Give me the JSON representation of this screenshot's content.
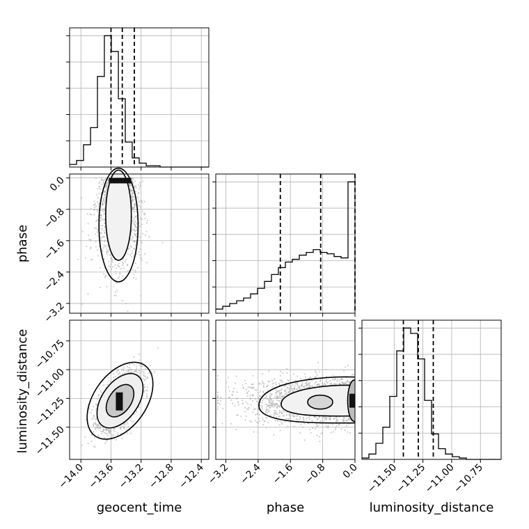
{
  "chart_data": {
    "type": "corner",
    "parameters": [
      "geocent_time",
      "phase",
      "luminosity_distance"
    ],
    "axis_labels": {
      "x": [
        "geocent_time",
        "phase",
        "luminosity_distance"
      ],
      "y_row1": "phase",
      "y_row2": "luminosity_distance"
    },
    "ranges": {
      "geocent_time": [
        -14.15,
        -12.3
      ],
      "phase": [
        -3.45,
        0.0
      ],
      "luminosity_distance": [
        -11.78,
        -10.57
      ]
    },
    "ticks": {
      "geocent_time": [
        -14.0,
        -13.6,
        -13.2,
        -12.8,
        -12.4
      ],
      "phase": [
        -3.2,
        -2.4,
        -1.6,
        -0.8,
        0.0
      ],
      "luminosity_distance": [
        -11.5,
        -11.25,
        -11.0,
        -10.75
      ]
    },
    "tick_labels": {
      "geocent_time": [
        "−14.0",
        "−13.6",
        "−13.2",
        "−12.8",
        "−12.4"
      ],
      "phase": [
        "−3.2",
        "−2.4",
        "−1.6",
        "−0.8",
        "0.0"
      ],
      "luminosity_distance": [
        "−11.50",
        "−11.25",
        "−11.00",
        "−10.75"
      ]
    },
    "quantiles": {
      "geocent_time": [
        -13.6,
        -13.45,
        -13.29
      ],
      "phase": [
        -1.85,
        -0.85,
        0.0
      ],
      "luminosity_distance": [
        -11.42,
        -11.29,
        -11.16
      ]
    },
    "histograms": {
      "geocent_time": {
        "edges": [
          -14.15,
          -14.058,
          -13.965,
          -13.872,
          -13.78,
          -13.688,
          -13.595,
          -13.502,
          -13.41,
          -13.318,
          -13.225,
          -13.132,
          -13.04,
          -12.948,
          -12.855,
          -12.762,
          -12.67,
          -12.578,
          -12.485,
          -12.392,
          -12.3
        ],
        "counts": [
          2,
          5,
          17,
          30,
          69,
          100,
          88,
          52,
          19,
          7,
          3,
          1,
          1,
          0,
          0,
          0,
          0,
          0,
          0,
          0
        ]
      },
      "phase": {
        "edges": [
          -3.45,
          -3.2775,
          -3.105,
          -2.9325,
          -2.76,
          -2.5875,
          -2.415,
          -2.2425,
          -2.07,
          -1.8975,
          -1.725,
          -1.5525,
          -1.38,
          -1.2075,
          -1.035,
          -0.8625,
          -0.69,
          -0.5175,
          -0.345,
          -0.1725,
          0.0
        ],
        "counts": [
          3,
          5,
          7,
          9,
          11,
          14,
          18,
          23,
          28,
          33,
          37,
          39,
          42,
          44,
          46,
          44,
          43,
          41,
          40,
          95
        ]
      },
      "luminosity_distance": {
        "edges": [
          -11.78,
          -11.7195,
          -11.659,
          -11.5985,
          -11.538,
          -11.4775,
          -11.417,
          -11.3565,
          -11.296,
          -11.2355,
          -11.175,
          -11.1145,
          -11.054,
          -10.9935,
          -10.933,
          -10.8725,
          -10.812,
          -10.7515,
          -10.691,
          -10.6305,
          -10.57
        ],
        "counts": [
          1,
          4,
          12,
          24,
          47,
          81,
          98,
          94,
          75,
          44,
          19,
          8,
          4,
          2,
          1,
          0,
          0,
          0,
          0,
          0
        ]
      }
    },
    "joint": {
      "phase_vs_geocent_time": {
        "center": [
          -13.5,
          -0.6
        ],
        "sd": [
          0.12,
          1.0
        ],
        "contours": [
          {
            "rx": 0.08,
            "ry": 0.75,
            "cy": -0.6
          },
          {
            "rx": 0.17,
            "ry": 1.15,
            "cy": -0.95
          },
          {
            "rx": 0.26,
            "ry": 1.45,
            "cy": -1.2
          }
        ],
        "peak": [
          -13.48,
          -0.05
        ]
      },
      "luminosity_distance_vs_geocent_time": {
        "center": [
          -13.48,
          -11.27
        ],
        "sd": [
          0.14,
          0.12
        ],
        "rho": 0.55
      },
      "luminosity_distance_vs_phase": {
        "center": [
          -1.0,
          -11.27
        ],
        "sd": [
          0.9,
          0.1
        ],
        "peak": [
          -0.05,
          -11.27
        ]
      }
    },
    "grid": true,
    "colors": {
      "line": "#000000",
      "scatter": "#b0b0b0",
      "grid": "#b0b0b0"
    }
  }
}
